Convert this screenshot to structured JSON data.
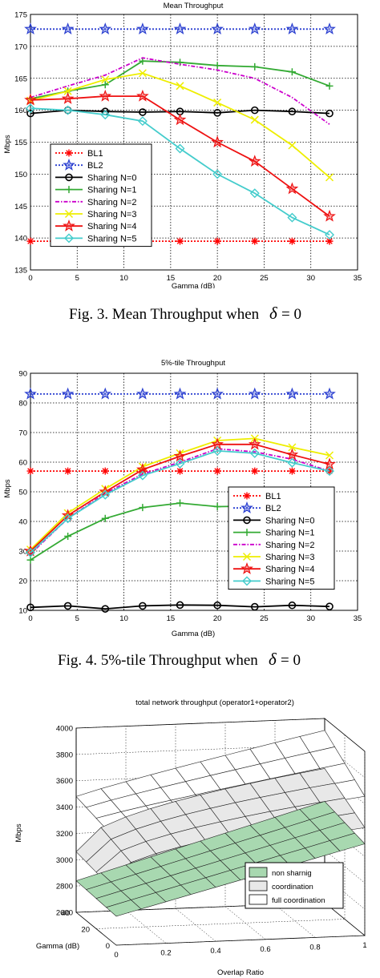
{
  "chart_data": [
    {
      "type": "line",
      "title": "Mean Throughput",
      "xlabel": "Gamma (dB)",
      "ylabel": "Mbps",
      "xlim": [
        0,
        35
      ],
      "ylim": [
        135,
        175
      ],
      "xticks": [
        0,
        5,
        10,
        15,
        20,
        25,
        30,
        35
      ],
      "yticks": [
        135,
        140,
        145,
        150,
        155,
        160,
        165,
        170,
        175
      ],
      "grid": true,
      "legend_position": "bottom-left",
      "series": [
        {
          "name": "BL1",
          "color": "#ff0000",
          "style": "dotted",
          "marker": "asterisk",
          "x": [
            0,
            4,
            8,
            12,
            16,
            20,
            24,
            28,
            32
          ],
          "y": [
            139.5,
            139.5,
            139.5,
            139.5,
            139.5,
            139.5,
            139.5,
            139.5,
            139.5
          ]
        },
        {
          "name": "BL2",
          "color": "#2a3fd0",
          "style": "dotted",
          "marker": "star",
          "x": [
            0,
            4,
            8,
            12,
            16,
            20,
            24,
            28,
            32
          ],
          "y": [
            172.7,
            172.7,
            172.7,
            172.7,
            172.7,
            172.7,
            172.7,
            172.7,
            172.7
          ]
        },
        {
          "name": "Sharing N=0",
          "color": "#000000",
          "style": "solid",
          "marker": "circle",
          "x": [
            0,
            4,
            8,
            12,
            16,
            20,
            24,
            28,
            32
          ],
          "y": [
            159.5,
            160,
            159.8,
            159.7,
            159.8,
            159.6,
            160.0,
            159.8,
            159.5
          ]
        },
        {
          "name": "Sharing N=1",
          "color": "#33aa33",
          "style": "solid",
          "marker": "plus",
          "x": [
            0,
            4,
            8,
            12,
            16,
            20,
            24,
            28,
            32
          ],
          "y": [
            161.8,
            163,
            164,
            167.7,
            167.5,
            167,
            166.8,
            166,
            163.8
          ]
        },
        {
          "name": "Sharing N=2",
          "color": "#cc00cc",
          "style": "dashdot",
          "marker": "none",
          "x": [
            0,
            4,
            8,
            12,
            16,
            20,
            24,
            28,
            32
          ],
          "y": [
            162,
            163.8,
            165.5,
            168.2,
            167.2,
            166.3,
            165,
            162,
            157.8
          ]
        },
        {
          "name": "Sharing N=3",
          "color": "#eeee00",
          "style": "solid",
          "marker": "x",
          "x": [
            0,
            4,
            8,
            12,
            16,
            20,
            24,
            28,
            32
          ],
          "y": [
            161.5,
            163,
            164.8,
            165.8,
            163.8,
            161.2,
            158.5,
            154.5,
            149.5
          ]
        },
        {
          "name": "Sharing N=4",
          "color": "#ee1111",
          "style": "solid",
          "marker": "star",
          "x": [
            0,
            4,
            8,
            12,
            16,
            20,
            24,
            28,
            32
          ],
          "y": [
            161.6,
            161.8,
            162.2,
            162.2,
            158.5,
            155,
            152,
            147.7,
            143.4
          ]
        },
        {
          "name": "Sharing N=5",
          "color": "#44cccc",
          "style": "solid",
          "marker": "diamond",
          "x": [
            0,
            4,
            8,
            12,
            16,
            20,
            24,
            28,
            32
          ],
          "y": [
            160.3,
            160,
            159.3,
            158.3,
            154,
            150,
            147,
            143.2,
            140.5
          ]
        }
      ]
    },
    {
      "type": "line",
      "title": "5%-tile Throughput",
      "xlabel": "Gamma (dB)",
      "ylabel": "Mbps",
      "xlim": [
        0,
        35
      ],
      "ylim": [
        10,
        90
      ],
      "xticks": [
        0,
        5,
        10,
        15,
        20,
        25,
        30,
        35
      ],
      "yticks": [
        10,
        20,
        30,
        40,
        50,
        60,
        70,
        80,
        90
      ],
      "grid": true,
      "legend_position": "bottom-right",
      "series": [
        {
          "name": "BL1",
          "color": "#ff0000",
          "style": "dotted",
          "marker": "asterisk",
          "x": [
            0,
            4,
            8,
            12,
            16,
            20,
            24,
            28,
            32
          ],
          "y": [
            57,
            57,
            57,
            57,
            57,
            57,
            57,
            57,
            57
          ]
        },
        {
          "name": "BL2",
          "color": "#2a3fd0",
          "style": "dotted",
          "marker": "star",
          "x": [
            0,
            4,
            8,
            12,
            16,
            20,
            24,
            28,
            32
          ],
          "y": [
            83,
            83,
            83,
            83,
            83,
            83,
            83,
            83,
            83
          ]
        },
        {
          "name": "Sharing N=0",
          "color": "#000000",
          "style": "solid",
          "marker": "circle",
          "x": [
            0,
            4,
            8,
            12,
            16,
            20,
            24,
            28,
            32
          ],
          "y": [
            11,
            11.5,
            10.5,
            11.5,
            11.8,
            11.7,
            11.2,
            11.7,
            11.3
          ]
        },
        {
          "name": "Sharing N=1",
          "color": "#33aa33",
          "style": "solid",
          "marker": "plus",
          "x": [
            0,
            4,
            8,
            12,
            16,
            20,
            24,
            28,
            32
          ],
          "y": [
            27,
            35,
            41,
            44.7,
            46.2,
            45,
            45.2,
            45.3,
            45.5
          ]
        },
        {
          "name": "Sharing N=2",
          "color": "#cc00cc",
          "style": "dashdot",
          "marker": "none",
          "x": [
            0,
            4,
            8,
            12,
            16,
            20,
            24,
            28,
            32
          ],
          "y": [
            29,
            41,
            49.5,
            56,
            60,
            64.5,
            63.5,
            61,
            57
          ]
        },
        {
          "name": "Sharing N=3",
          "color": "#eeee00",
          "style": "solid",
          "marker": "x",
          "x": [
            0,
            4,
            8,
            12,
            16,
            20,
            24,
            28,
            32
          ],
          "y": [
            30.5,
            42.8,
            51,
            58.5,
            63,
            67.3,
            68,
            65,
            62.3
          ]
        },
        {
          "name": "Sharing N=4",
          "color": "#ee1111",
          "style": "solid",
          "marker": "star",
          "x": [
            0,
            4,
            8,
            12,
            16,
            20,
            24,
            28,
            32
          ],
          "y": [
            30,
            42,
            50,
            57.5,
            62,
            66,
            66,
            62.5,
            59.3
          ]
        },
        {
          "name": "Sharing N=5",
          "color": "#44cccc",
          "style": "solid",
          "marker": "diamond",
          "x": [
            0,
            4,
            8,
            12,
            16,
            20,
            24,
            28,
            32
          ],
          "y": [
            29.5,
            41,
            49,
            55.5,
            59.5,
            63.8,
            63,
            59.8,
            57
          ]
        }
      ]
    },
    {
      "type": "surface",
      "title": "total network throughput (operator1+operator2)",
      "xlabel": "Overlap Ratio",
      "ylabel": "Gamma (dB)",
      "zlabel": "Mbps",
      "xticks": [
        0,
        0.2,
        0.4,
        0.6,
        0.8,
        1
      ],
      "yticks": [
        0,
        20,
        40
      ],
      "zticks": [
        2600,
        2800,
        3000,
        3200,
        3400,
        3600,
        3800,
        4000
      ],
      "zlim": [
        2600,
        4000
      ],
      "legend_position": "bottom-right",
      "series": [
        {
          "name": "non sharnig",
          "color": "#a8d8b0",
          "z_min_corner": 2820,
          "z_max_corner": 3350,
          "trend": "increasing with overlap ratio"
        },
        {
          "name": "coordination",
          "color": "#e8e8e8",
          "z_min_corner": 3000,
          "z_max_corner": 3560,
          "trend": "increasing with overlap ratio, lowest at small gamma"
        },
        {
          "name": "full coordination",
          "color": "#ffffff",
          "z_min_corner": 3400,
          "z_max_corner": 3830,
          "trend": "increasing with overlap ratio"
        }
      ]
    }
  ],
  "captions": {
    "fig3_prefix": "Fig. 3. Mean Throughput when",
    "fig4_prefix": "Fig. 4. 5%-tile Throughput when",
    "symbol": "δ",
    "equals_zero": "= 0"
  }
}
